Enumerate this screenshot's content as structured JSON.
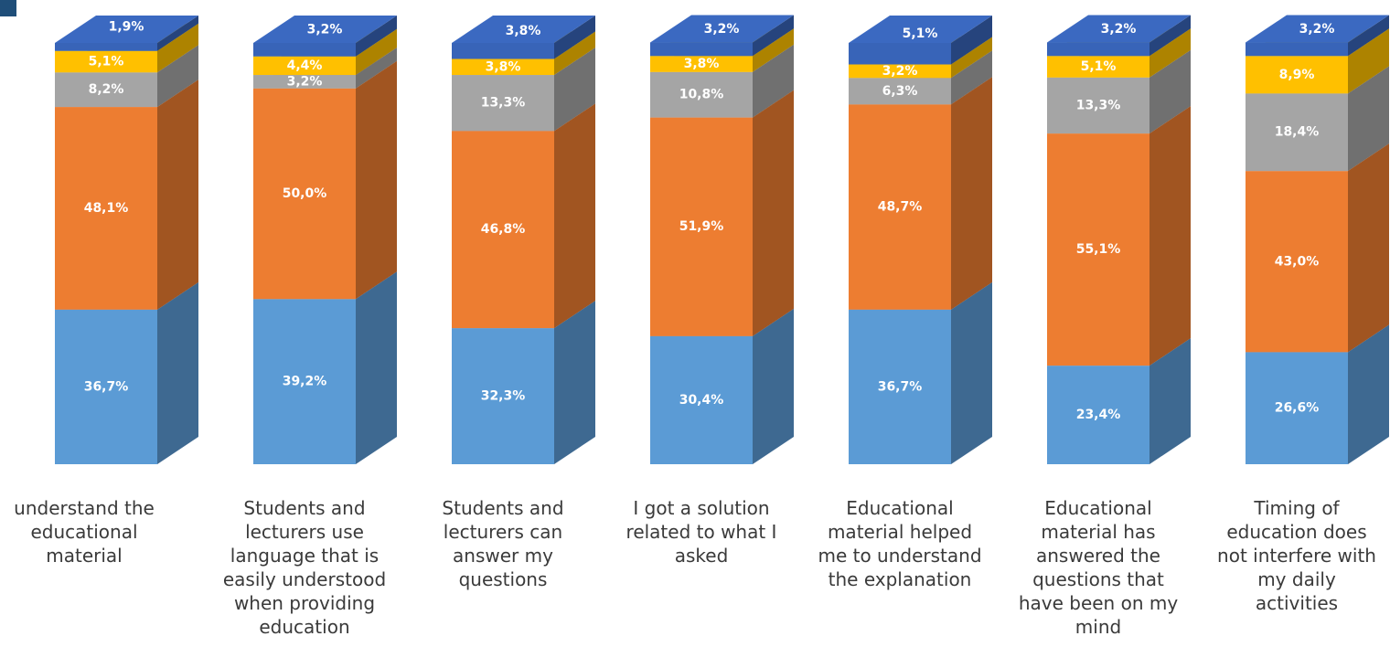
{
  "chart_data": {
    "type": "stacked-bar-3d",
    "categories": [
      "understand the educational material",
      "Students and lecturers use language that is easily understood when providing education",
      "Students and lecturers can answer my questions",
      "I got a solution related to what I asked",
      "Educational material helped me to understand the explanation",
      "Educational material has answered the questions that have been on my mind",
      "Timing of education does not interfere with my daily activities"
    ],
    "ylim": [
      0,
      100
    ],
    "series": [
      {
        "color": "#5b9bd5",
        "values": [
          36.7,
          39.2,
          32.3,
          30.4,
          36.7,
          23.4,
          26.6
        ],
        "value_labels": [
          "36,7%",
          "39,2%",
          "32,3%",
          "30,4%",
          "36,7%",
          "23,4%",
          "26,6%"
        ]
      },
      {
        "color": "#ed7d31",
        "values": [
          48.1,
          50.0,
          46.8,
          51.9,
          48.7,
          55.1,
          43.0
        ],
        "value_labels": [
          "48,1%",
          "50,0%",
          "46,8%",
          "51,9%",
          "48,7%",
          "55,1%",
          "43,0%"
        ]
      },
      {
        "color": "#a5a5a5",
        "values": [
          8.2,
          3.2,
          13.3,
          10.8,
          6.3,
          13.3,
          18.4
        ],
        "value_labels": [
          "8,2%",
          "3,2%",
          "13,3%",
          "10,8%",
          "6,3%",
          "13,3%",
          "18,4%"
        ]
      },
      {
        "color": "#ffc000",
        "values": [
          5.1,
          4.4,
          3.8,
          3.8,
          3.2,
          5.1,
          8.9
        ],
        "value_labels": [
          "5,1%",
          "4,4%",
          "3,8%",
          "3,8%",
          "3,2%",
          "5,1%",
          "8,9%"
        ]
      },
      {
        "color": "#3864b8",
        "values": [
          1.9,
          3.2,
          3.8,
          3.2,
          5.1,
          3.2,
          3.2
        ],
        "value_labels": [
          "1,9%",
          "3,2%",
          "3,8%",
          "3,2%",
          "5,1%",
          "3,2%",
          "3,2%"
        ]
      }
    ]
  }
}
